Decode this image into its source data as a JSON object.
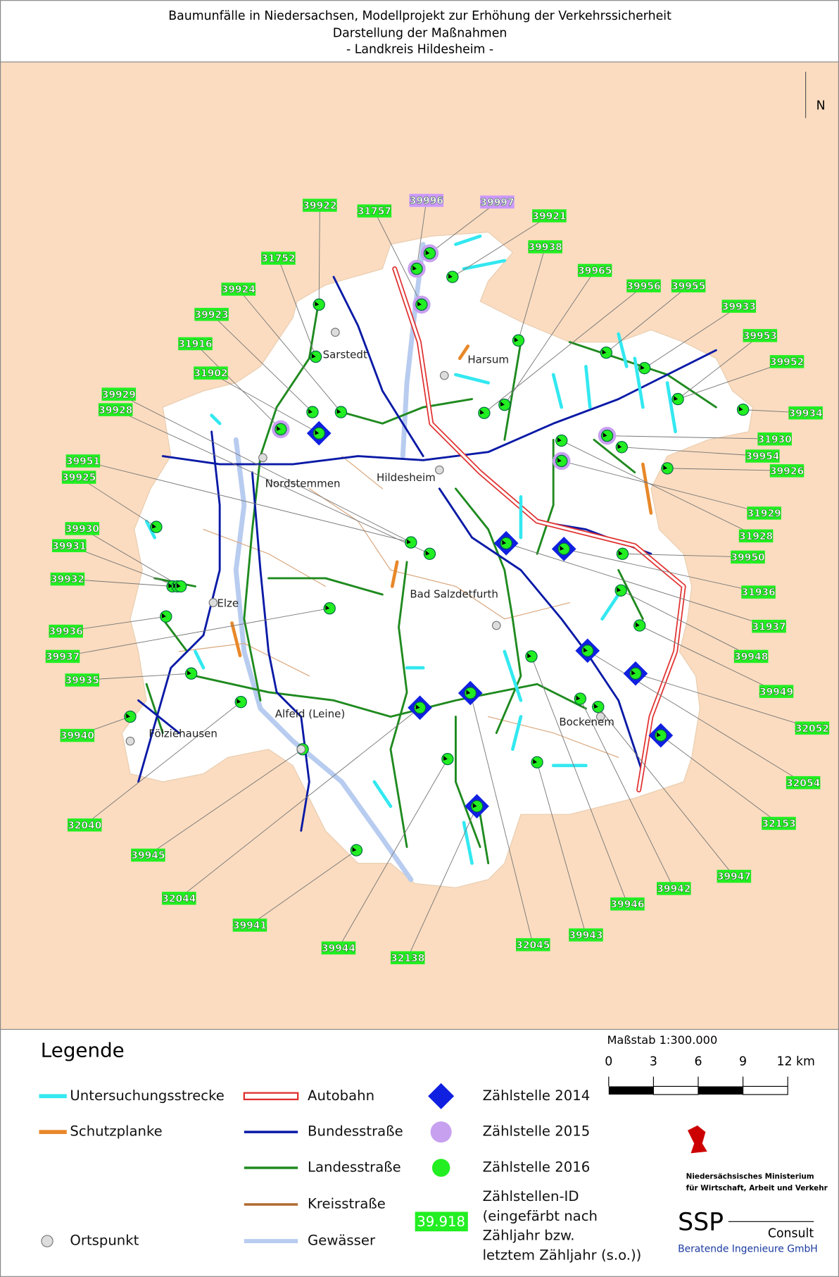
{
  "header": {
    "lines": [
      "Baumunfälle in Niedersachsen, Modellprojekt zur Erhöhung der Verkehrssicherheit",
      "Darstellung der Maßnahmen",
      "- Landkreis Hildesheim -"
    ]
  },
  "north": "N",
  "towns": [
    "Sarstedt",
    "Harsum",
    "Nordstemmen",
    "Hildesheim",
    "Bad Salzdetfurth",
    "Elze",
    "Alfeld (Leine)",
    "Fölziehausen",
    "Bockenem"
  ],
  "labels": [
    {
      "id": "39922",
      "color": "#22ee22"
    },
    {
      "id": "31757",
      "color": "#22ee22"
    },
    {
      "id": "39996",
      "color": "#cc99ff"
    },
    {
      "id": "39997",
      "color": "#cc99ff"
    },
    {
      "id": "39921",
      "color": "#22ee22"
    },
    {
      "id": "39938",
      "color": "#22ee22"
    },
    {
      "id": "39965",
      "color": "#22ee22"
    },
    {
      "id": "39956",
      "color": "#22ee22"
    },
    {
      "id": "39955",
      "color": "#22ee22"
    },
    {
      "id": "39933",
      "color": "#22ee22"
    },
    {
      "id": "39953",
      "color": "#22ee22"
    },
    {
      "id": "39952",
      "color": "#22ee22"
    },
    {
      "id": "39934",
      "color": "#22ee22"
    },
    {
      "id": "31930",
      "color": "#22ee22"
    },
    {
      "id": "39954",
      "color": "#22ee22"
    },
    {
      "id": "39926",
      "color": "#22ee22"
    },
    {
      "id": "31929",
      "color": "#22ee22"
    },
    {
      "id": "31928",
      "color": "#22ee22"
    },
    {
      "id": "39950",
      "color": "#22ee22"
    },
    {
      "id": "31936",
      "color": "#22ee22"
    },
    {
      "id": "31937",
      "color": "#22ee22"
    },
    {
      "id": "39948",
      "color": "#22ee22"
    },
    {
      "id": "39949",
      "color": "#22ee22"
    },
    {
      "id": "32052",
      "color": "#22ee22"
    },
    {
      "id": "32054",
      "color": "#22ee22"
    },
    {
      "id": "32153",
      "color": "#22ee22"
    },
    {
      "id": "39947",
      "color": "#22ee22"
    },
    {
      "id": "39942",
      "color": "#22ee22"
    },
    {
      "id": "39946",
      "color": "#22ee22"
    },
    {
      "id": "39943",
      "color": "#22ee22"
    },
    {
      "id": "32045",
      "color": "#22ee22"
    },
    {
      "id": "32138",
      "color": "#22ee22"
    },
    {
      "id": "39944",
      "color": "#22ee22"
    },
    {
      "id": "39941",
      "color": "#22ee22"
    },
    {
      "id": "32044",
      "color": "#22ee22"
    },
    {
      "id": "39945",
      "color": "#22ee22"
    },
    {
      "id": "32040",
      "color": "#22ee22"
    },
    {
      "id": "39940",
      "color": "#22ee22"
    },
    {
      "id": "39935",
      "color": "#22ee22"
    },
    {
      "id": "39937",
      "color": "#22ee22"
    },
    {
      "id": "39936",
      "color": "#22ee22"
    },
    {
      "id": "39932",
      "color": "#22ee22"
    },
    {
      "id": "39931",
      "color": "#22ee22"
    },
    {
      "id": "39930",
      "color": "#22ee22"
    },
    {
      "id": "39925",
      "color": "#22ee22"
    },
    {
      "id": "39951",
      "color": "#22ee22"
    },
    {
      "id": "39928",
      "color": "#22ee22"
    },
    {
      "id": "39929",
      "color": "#22ee22"
    },
    {
      "id": "31902",
      "color": "#22ee22"
    },
    {
      "id": "31916",
      "color": "#22ee22"
    },
    {
      "id": "39923",
      "color": "#22ee22"
    },
    {
      "id": "39924",
      "color": "#22ee22"
    },
    {
      "id": "31752",
      "color": "#22ee22"
    }
  ],
  "legend": {
    "title": "Legende",
    "items": [
      "Untersuchungsstrecke",
      "Schutzplanke",
      "Ortspunkt",
      "Autobahn",
      "Bundesstraße",
      "Landesstraße",
      "Kreisstraße",
      "Gewässer",
      "Zählstelle 2014",
      "Zählstelle 2015",
      "Zählstelle 2016"
    ],
    "id_sample": "39.918",
    "id_text": [
      "Zählstellen-ID",
      "(eingefärbt nach",
      "Zähljahr bzw.",
      "letztem Zähljahr (s.o.))"
    ]
  },
  "scale": {
    "title": "Maßstab 1:300.000",
    "ticks": [
      "0",
      "3",
      "6",
      "9",
      "12 km"
    ]
  },
  "logos": {
    "ministry": [
      "Niedersächsisches Ministerium",
      "für Wirtschaft, Arbeit und Verkehr"
    ],
    "ssp": "SSP",
    "consult": "Consult",
    "sub": "Beratende Ingenieure GmbH"
  }
}
